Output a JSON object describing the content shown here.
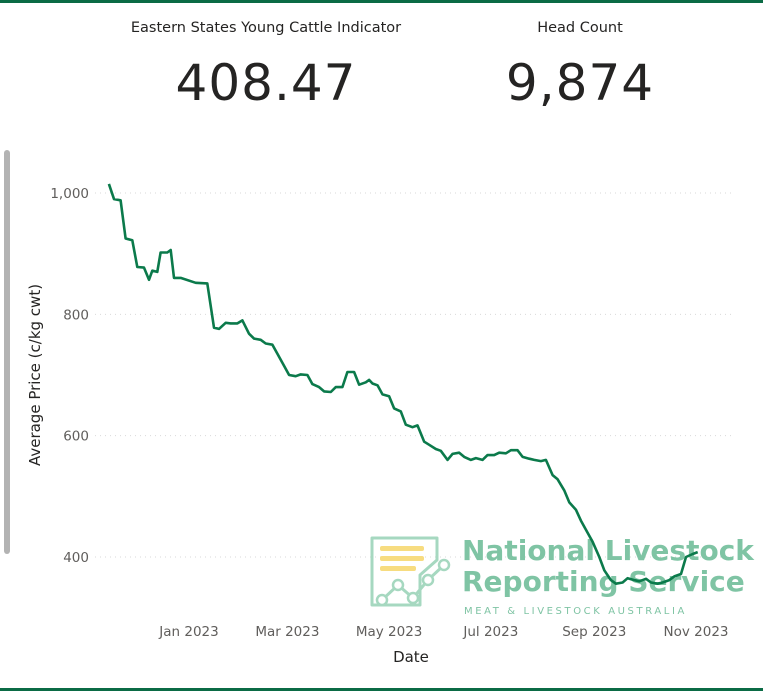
{
  "kpis": [
    {
      "label": "Eastern States Young Cattle Indicator",
      "value": "408.47"
    },
    {
      "label": "Head Count",
      "value": "9,874"
    }
  ],
  "watermark": {
    "line1": "National Livestock",
    "line2": "Reporting Service",
    "line3": "MEAT & LIVESTOCK AUSTRALIA",
    "color": "#7fc4a4"
  },
  "chart_data": {
    "type": "line",
    "xlabel": "Date",
    "ylabel": "Average Price (c/kg cwt)",
    "y_ticks": [
      400,
      600,
      800,
      1000
    ],
    "y_tick_labels": [
      "400",
      "600",
      "800",
      "1,000"
    ],
    "x_ticks": [
      "2023-01-01",
      "2023-03-01",
      "2023-05-01",
      "2023-07-01",
      "2023-09-01",
      "2023-11-01"
    ],
    "x_tick_labels": [
      "Jan 2023",
      "Mar 2023",
      "May 2023",
      "Jul 2023",
      "Sep 2023",
      "Nov 2023"
    ],
    "grid": true,
    "line_color": "#0b7a4b",
    "series": [
      {
        "points": [
          [
            "2022-11-14",
            1015
          ],
          [
            "2022-11-17",
            990
          ],
          [
            "2022-11-21",
            988
          ],
          [
            "2022-11-24",
            925
          ],
          [
            "2022-11-28",
            922
          ],
          [
            "2022-12-01",
            878
          ],
          [
            "2022-12-05",
            877
          ],
          [
            "2022-12-08",
            857
          ],
          [
            "2022-12-10",
            872
          ],
          [
            "2022-12-13",
            870
          ],
          [
            "2022-12-15",
            902
          ],
          [
            "2022-12-19",
            902
          ],
          [
            "2022-12-21",
            906
          ],
          [
            "2022-12-23",
            860
          ],
          [
            "2022-12-27",
            860
          ],
          [
            "2023-01-05",
            852
          ],
          [
            "2023-01-12",
            851
          ],
          [
            "2023-01-16",
            778
          ],
          [
            "2023-01-19",
            776
          ],
          [
            "2023-01-23",
            786
          ],
          [
            "2023-01-26",
            785
          ],
          [
            "2023-01-30",
            785
          ],
          [
            "2023-02-02",
            790
          ],
          [
            "2023-02-06",
            768
          ],
          [
            "2023-02-09",
            760
          ],
          [
            "2023-02-13",
            758
          ],
          [
            "2023-02-16",
            752
          ],
          [
            "2023-02-20",
            750
          ],
          [
            "2023-02-23",
            735
          ],
          [
            "2023-02-27",
            715
          ],
          [
            "2023-03-02",
            700
          ],
          [
            "2023-03-06",
            698
          ],
          [
            "2023-03-09",
            701
          ],
          [
            "2023-03-13",
            700
          ],
          [
            "2023-03-16",
            685
          ],
          [
            "2023-03-20",
            680
          ],
          [
            "2023-03-23",
            673
          ],
          [
            "2023-03-27",
            672
          ],
          [
            "2023-03-30",
            680
          ],
          [
            "2023-04-03",
            680
          ],
          [
            "2023-04-06",
            705
          ],
          [
            "2023-04-10",
            705
          ],
          [
            "2023-04-13",
            684
          ],
          [
            "2023-04-17",
            688
          ],
          [
            "2023-04-19",
            692
          ],
          [
            "2023-04-21",
            686
          ],
          [
            "2023-04-24",
            683
          ],
          [
            "2023-04-27",
            668
          ],
          [
            "2023-05-01",
            665
          ],
          [
            "2023-05-04",
            645
          ],
          [
            "2023-05-08",
            640
          ],
          [
            "2023-05-11",
            618
          ],
          [
            "2023-05-15",
            614
          ],
          [
            "2023-05-18",
            617
          ],
          [
            "2023-05-22",
            590
          ],
          [
            "2023-05-25",
            585
          ],
          [
            "2023-05-29",
            578
          ],
          [
            "2023-06-01",
            575
          ],
          [
            "2023-06-05",
            560
          ],
          [
            "2023-06-08",
            570
          ],
          [
            "2023-06-12",
            572
          ],
          [
            "2023-06-15",
            565
          ],
          [
            "2023-06-19",
            560
          ],
          [
            "2023-06-22",
            563
          ],
          [
            "2023-06-26",
            560
          ],
          [
            "2023-06-29",
            568
          ],
          [
            "2023-07-03",
            568
          ],
          [
            "2023-07-06",
            572
          ],
          [
            "2023-07-10",
            571
          ],
          [
            "2023-07-13",
            576
          ],
          [
            "2023-07-17",
            576
          ],
          [
            "2023-07-20",
            565
          ],
          [
            "2023-07-24",
            562
          ],
          [
            "2023-07-27",
            560
          ],
          [
            "2023-07-31",
            558
          ],
          [
            "2023-08-03",
            560
          ],
          [
            "2023-08-07",
            535
          ],
          [
            "2023-08-10",
            528
          ],
          [
            "2023-08-14",
            510
          ],
          [
            "2023-08-17",
            490
          ],
          [
            "2023-08-21",
            478
          ],
          [
            "2023-08-24",
            460
          ],
          [
            "2023-08-28",
            440
          ],
          [
            "2023-08-31",
            425
          ],
          [
            "2023-09-04",
            400
          ],
          [
            "2023-09-07",
            378
          ],
          [
            "2023-09-11",
            362
          ],
          [
            "2023-09-14",
            356
          ],
          [
            "2023-09-18",
            358
          ],
          [
            "2023-09-21",
            365
          ],
          [
            "2023-09-25",
            362
          ],
          [
            "2023-09-28",
            360
          ],
          [
            "2023-10-02",
            364
          ],
          [
            "2023-10-05",
            358
          ],
          [
            "2023-10-09",
            356
          ],
          [
            "2023-10-12",
            358
          ],
          [
            "2023-10-16",
            362
          ],
          [
            "2023-10-19",
            368
          ],
          [
            "2023-10-23",
            372
          ],
          [
            "2023-10-26",
            400
          ],
          [
            "2023-10-30",
            405
          ],
          [
            "2023-11-02",
            408
          ]
        ]
      }
    ]
  }
}
